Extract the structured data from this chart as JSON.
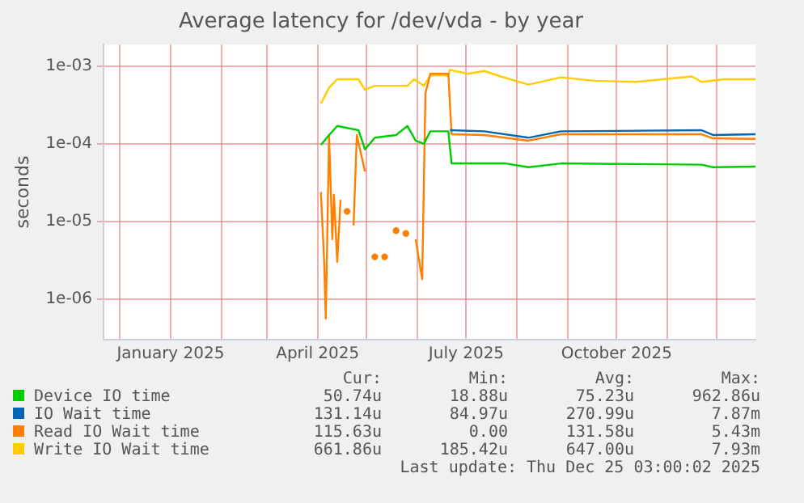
{
  "chart_data": {
    "type": "line",
    "title": "Average latency for /dev/vda - by year",
    "ylabel": "seconds",
    "log": "y",
    "xlim": [
      "2024-11-21",
      "2025-12-25"
    ],
    "xticks": [
      {
        "value": "2024-12-01",
        "label": null
      },
      {
        "value": "2025-01-01",
        "label": "January 2025"
      },
      {
        "value": "2025-02-01",
        "label": null
      },
      {
        "value": "2025-03-01",
        "label": null
      },
      {
        "value": "2025-04-01",
        "label": "April 2025"
      },
      {
        "value": "2025-05-01",
        "label": null
      },
      {
        "value": "2025-06-01",
        "label": null
      },
      {
        "value": "2025-07-01",
        "label": "July 2025"
      },
      {
        "value": "2025-08-01",
        "label": null
      },
      {
        "value": "2025-09-01",
        "label": null
      },
      {
        "value": "2025-10-01",
        "label": "October 2025"
      },
      {
        "value": "2025-11-01",
        "label": null
      },
      {
        "value": "2025-12-01",
        "label": null
      }
    ],
    "ylim": [
      3e-07,
      0.0019
    ],
    "yticks": [
      {
        "value": 1e-06,
        "label": "1e-06"
      },
      {
        "value": 1e-05,
        "label": "1e-05"
      },
      {
        "value": 0.0001,
        "label": "1e-04"
      },
      {
        "value": 0.001,
        "label": "1e-03"
      }
    ],
    "grid": true,
    "legend": "bottom",
    "marker": "none",
    "line_style": "solid",
    "series": [
      {
        "name": "Device IO time",
        "color": "#00cc00",
        "x": [
          "2025-04-03",
          "2025-04-08",
          "2025-04-13",
          "2025-04-26",
          "2025-04-30",
          "2025-05-06",
          "2025-05-19",
          "2025-05-26",
          "2025-05-31",
          "2025-06-05",
          "2025-06-09",
          "2025-06-20",
          "2025-06-22",
          "2025-07-25",
          "2025-08-08",
          "2025-08-28",
          "2025-11-22",
          "2025-11-29",
          "2025-12-25"
        ],
        "values": [
          9.7e-05,
          0.00013,
          0.00017,
          0.00015,
          8.5e-05,
          0.00012,
          0.00013,
          0.00017,
          0.00011,
          0.0001,
          0.000145,
          0.000145,
          5.6e-05,
          5.6e-05,
          5e-05,
          5.6e-05,
          5.4e-05,
          5e-05,
          5.1e-05
        ]
      },
      {
        "name": "IO Wait time",
        "color": "#0066b3",
        "x": [
          "2025-06-21",
          "2025-07-12",
          "2025-08-08",
          "2025-08-28",
          "2025-11-22",
          "2025-11-29",
          "2025-12-25"
        ],
        "values": [
          0.00015,
          0.000145,
          0.00012,
          0.000145,
          0.00015,
          0.00013,
          0.000133
        ]
      },
      {
        "name": "Read IO Wait time",
        "color": "#ff8000",
        "x": [
          "2025-04-03",
          "2025-04-05",
          "2025-04-06",
          "2025-04-08",
          "2025-04-10",
          "2025-04-11",
          "2025-04-13",
          "2025-04-15",
          "2025-04-17",
          "2025-04-19",
          "2025-04-21",
          "2025-04-23",
          "2025-04-25",
          "2025-04-30",
          "2025-05-03",
          "2025-05-06",
          "2025-05-10",
          "2025-05-12",
          "2025-05-15",
          "2025-05-19",
          "2025-05-22",
          "2025-05-25",
          "2025-05-28",
          "2025-05-31",
          "2025-06-04",
          "2025-06-06",
          "2025-06-09",
          "2025-06-20",
          "2025-06-22",
          "2025-07-12",
          "2025-08-08",
          "2025-08-28",
          "2025-11-22",
          "2025-11-29",
          "2025-12-25"
        ],
        "values": [
          2.4e-05,
          3e-06,
          5.6e-07,
          0.00013,
          5.9e-06,
          2.2e-05,
          3e-06,
          1.9e-05,
          null,
          1.35e-05,
          null,
          8.9e-06,
          0.00013,
          4.4e-05,
          null,
          3.5e-06,
          null,
          3.5e-06,
          null,
          7.6e-06,
          null,
          7e-06,
          null,
          5.9e-06,
          1.8e-06,
          0.00045,
          0.0008,
          0.0008,
          0.000133,
          0.00013,
          0.00011,
          0.000133,
          0.000133,
          0.000118,
          0.000116
        ]
      },
      {
        "name": "Write IO Wait time",
        "color": "#ffcc00",
        "x": [
          "2025-04-03",
          "2025-04-08",
          "2025-04-13",
          "2025-04-26",
          "2025-04-30",
          "2025-05-06",
          "2025-05-26",
          "2025-05-30",
          "2025-06-05",
          "2025-06-09",
          "2025-06-20",
          "2025-06-21",
          "2025-07-02",
          "2025-07-12",
          "2025-07-22",
          "2025-08-08",
          "2025-08-28",
          "2025-09-17",
          "2025-10-13",
          "2025-11-16",
          "2025-11-22",
          "2025-12-06",
          "2025-12-25"
        ],
        "values": [
          0.00033,
          0.00053,
          0.00068,
          0.00068,
          0.0005,
          0.00056,
          0.00056,
          0.00068,
          0.00056,
          0.00076,
          0.00076,
          0.0009,
          0.0008,
          0.00087,
          0.00074,
          0.00058,
          0.00072,
          0.00065,
          0.00063,
          0.00074,
          0.00063,
          0.00068,
          0.00068
        ]
      }
    ],
    "annotations": [
      "Cur:",
      "Min:",
      "Avg:",
      "Max:",
      "50.74u",
      "18.88u",
      "75.23u",
      "962.86u",
      "131.14u",
      "84.97u",
      "270.99u",
      "7.87m",
      "115.63u",
      "0.00",
      "131.58u",
      "5.43m",
      "661.86u",
      "185.42u",
      "647.00u",
      "7.93m",
      "Last update: Thu Dec 25 03:00:02 2025"
    ]
  }
}
